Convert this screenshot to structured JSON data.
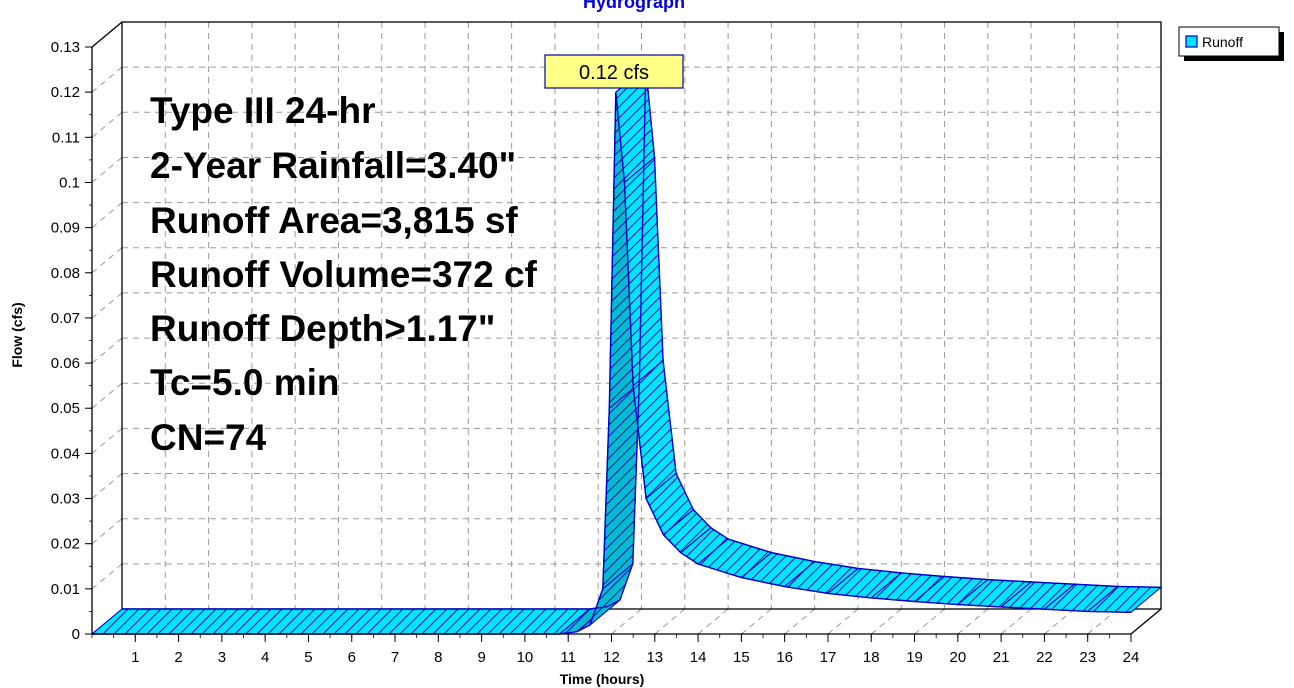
{
  "chart_data": {
    "type": "area",
    "title": "Hydrograph",
    "xlabel": "Time  (hours)",
    "ylabel": "Flow  (cfs)",
    "xlim": [
      0,
      24
    ],
    "ylim": [
      0,
      0.13
    ],
    "x_ticks": [
      "1",
      "2",
      "3",
      "4",
      "5",
      "6",
      "7",
      "8",
      "9",
      "10",
      "11",
      "12",
      "13",
      "14",
      "15",
      "16",
      "17",
      "18",
      "19",
      "20",
      "21",
      "22",
      "23",
      "24"
    ],
    "y_ticks": [
      "0",
      "0.01",
      "0.02",
      "0.03",
      "0.04",
      "0.05",
      "0.06",
      "0.07",
      "0.08",
      "0.09",
      "0.1",
      "0.11",
      "0.12",
      "0.13"
    ],
    "grid": true,
    "legend_position": "top-right",
    "series": [
      {
        "name": "Runoff",
        "color": "#00e5ff",
        "x": [
          0,
          10.8,
          11.2,
          11.5,
          11.8,
          11.95,
          12.1,
          12.3,
          12.5,
          12.8,
          13.2,
          13.6,
          14,
          15,
          16,
          17,
          18,
          19,
          20,
          21,
          22,
          23,
          24
        ],
        "y": [
          0,
          0,
          0.0005,
          0.002,
          0.01,
          0.05,
          0.12,
          0.1,
          0.055,
          0.03,
          0.022,
          0.018,
          0.0155,
          0.0125,
          0.0105,
          0.009,
          0.008,
          0.0072,
          0.0065,
          0.006,
          0.0055,
          0.005,
          0.0048
        ]
      }
    ],
    "peak_label": "0.12 cfs",
    "annotations": [
      "Type III 24-hr",
      "2-Year Rainfall=3.40\"",
      "Runoff Area=3,815 sf",
      "Runoff Volume=372 cf",
      "Runoff Depth>1.17\"",
      "Tc=5.0 min",
      "CN=74"
    ]
  }
}
